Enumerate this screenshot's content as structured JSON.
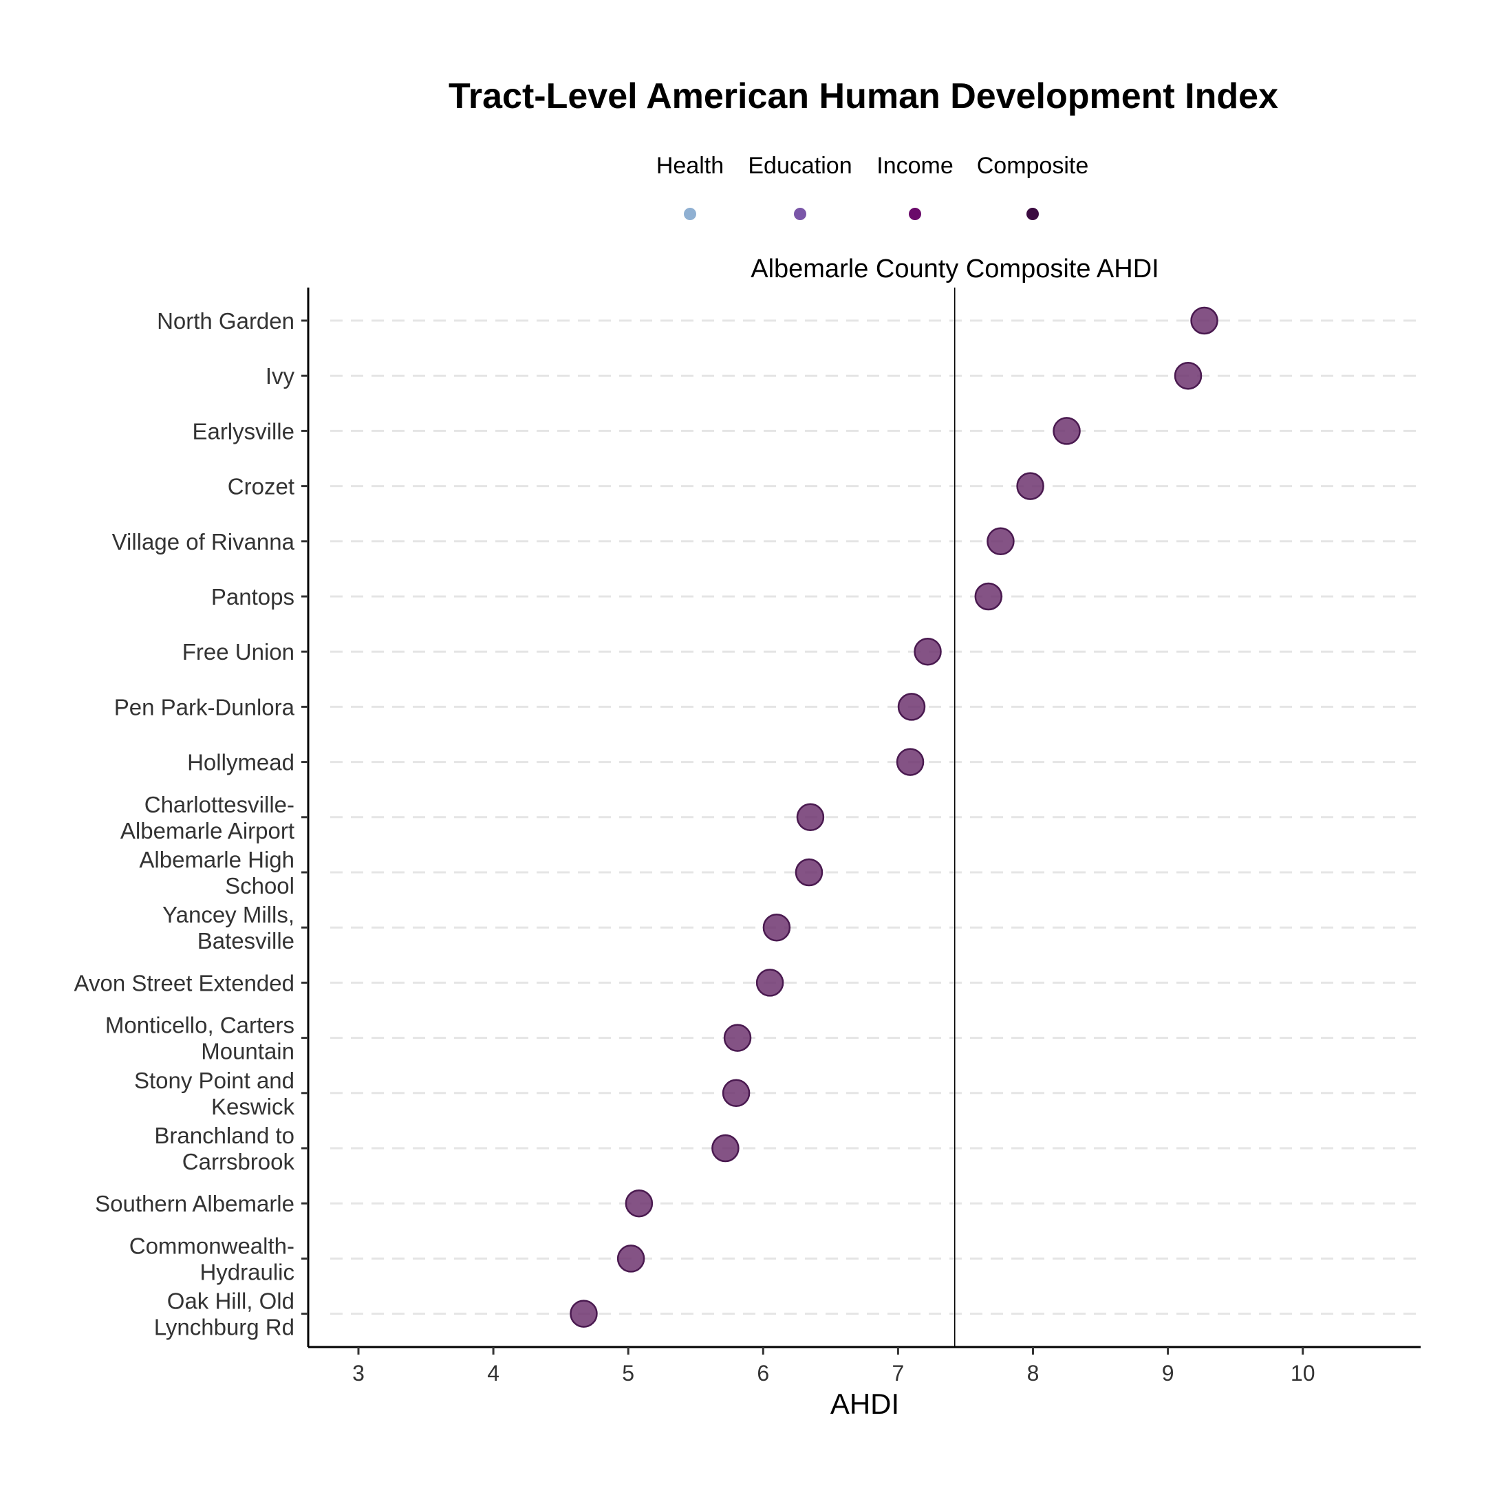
{
  "chart_data": {
    "type": "scatter",
    "title": "Tract-Level American Human Development Index",
    "xlabel": "AHDI",
    "ylabel": "",
    "xlim": [
      2.63,
      10.85
    ],
    "x_ticks": [
      3,
      4,
      5,
      6,
      7,
      8,
      9,
      10
    ],
    "grid": "horizontal dashed",
    "legend_position": "top",
    "legend": [
      {
        "name": "Health",
        "color": "#8fb0d2"
      },
      {
        "name": "Education",
        "color": "#7a56a8"
      },
      {
        "name": "Income",
        "color": "#6a0a6a"
      },
      {
        "name": "Composite",
        "color": "#3b0a40"
      }
    ],
    "reference_line": {
      "label": "Albemarle County Composite AHDI",
      "x": 7.42
    },
    "point_color": "#6e3570",
    "categories": [
      [
        "North Garden"
      ],
      [
        "Ivy"
      ],
      [
        "Earlysville"
      ],
      [
        "Crozet"
      ],
      [
        "Village of Rivanna"
      ],
      [
        "Pantops"
      ],
      [
        "Free Union"
      ],
      [
        "Pen Park-Dunlora"
      ],
      [
        "Hollymead"
      ],
      [
        "Charlottesville-",
        "Albemarle Airport"
      ],
      [
        "Albemarle High",
        "School"
      ],
      [
        "Yancey Mills,",
        "Batesville"
      ],
      [
        "Avon Street Extended"
      ],
      [
        "Monticello, Carters",
        "Mountain"
      ],
      [
        "Stony Point and",
        "Keswick"
      ],
      [
        "Branchland to",
        "Carrsbrook"
      ],
      [
        "Southern Albemarle"
      ],
      [
        "Commonwealth-",
        "Hydraulic"
      ],
      [
        "Oak Hill, Old",
        "Lynchburg Rd"
      ]
    ],
    "series": [
      {
        "name": "Composite",
        "values": [
          9.27,
          9.15,
          8.25,
          7.98,
          7.76,
          7.67,
          7.22,
          7.1,
          7.09,
          6.35,
          6.34,
          6.1,
          6.05,
          5.81,
          5.8,
          5.72,
          5.08,
          5.02,
          4.67
        ]
      }
    ]
  }
}
